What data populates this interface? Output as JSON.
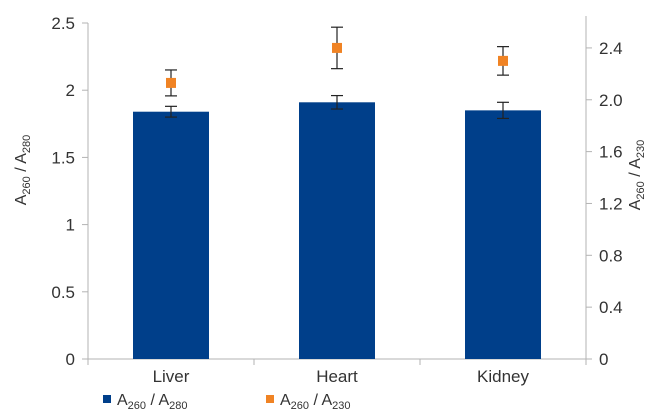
{
  "chart_data": {
    "type": "bar",
    "categories": [
      "Liver",
      "Heart",
      "Kidney"
    ],
    "series": [
      {
        "name": "A260 / A280",
        "chart": "bar",
        "axis": "left",
        "color": "#003f8a",
        "values": [
          1.84,
          1.91,
          1.85
        ],
        "error": [
          0.04,
          0.05,
          0.06
        ]
      },
      {
        "name": "A260 / A230",
        "chart": "scatter",
        "axis": "right",
        "color": "#f08324",
        "values": [
          2.13,
          2.4,
          2.3
        ],
        "error": [
          0.1,
          0.16,
          0.11
        ]
      }
    ],
    "ylabel": "A260 / A280",
    "ylabel_main": "A",
    "ylabel_sub1": "260",
    "ylabel_sep": " / A",
    "ylabel_sub2": "280",
    "y2label": "A260 / A230",
    "y2label_main": "A",
    "y2label_sub1": "260",
    "y2label_sep": " / A",
    "y2label_sub2": "230",
    "ylim": [
      0,
      2.5
    ],
    "y2lim": [
      0,
      2.6
    ],
    "yticks": [
      "0",
      "0.5",
      "1",
      "1.5",
      "2",
      "2.5"
    ],
    "y2ticks": [
      "0",
      "0.4",
      "0.8",
      "1.2",
      "1.6",
      "2.0",
      "2.4"
    ],
    "grid": false,
    "legend_position": "bottom-left"
  },
  "legend": {
    "items": [
      {
        "color": "#003f8a",
        "main": "A",
        "sub1": "260",
        "sep": " / A",
        "sub2": "280"
      },
      {
        "color": "#f08324",
        "main": "A",
        "sub1": "260",
        "sep": " / A",
        "sub2": "230"
      }
    ]
  }
}
